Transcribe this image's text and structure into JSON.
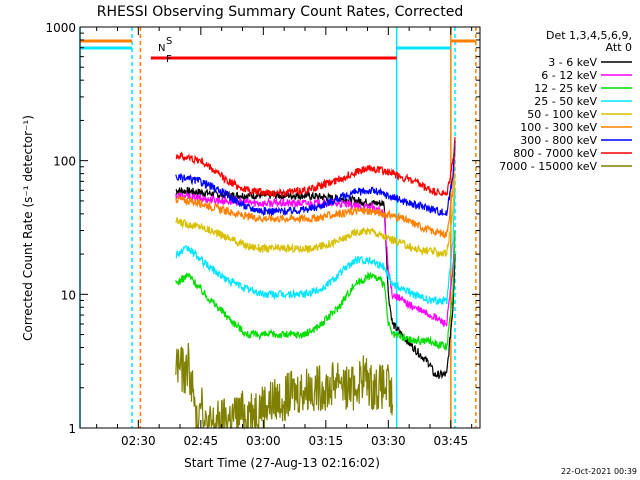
{
  "chart_data": {
    "type": "line",
    "title": "RHESSI Observing Summary Count Rates, Corrected",
    "xlabel": "Start Time (27-Aug-13 02:16:02)",
    "ylabel": "Corrected Count Rate (s⁻¹ detector⁻¹)",
    "yscale": "log",
    "ylim": [
      1,
      1000
    ],
    "xlim_minutes": [
      0,
      96
    ],
    "x_ticks": [
      {
        "label": "02:30",
        "minute": 14
      },
      {
        "label": "02:45",
        "minute": 29
      },
      {
        "label": "03:00",
        "minute": 44
      },
      {
        "label": "03:15",
        "minute": 59
      },
      {
        "label": "03:30",
        "minute": 74
      },
      {
        "label": "03:45",
        "minute": 89
      }
    ],
    "y_ticks": [
      {
        "label": "1",
        "value": 1
      },
      {
        "label": "10",
        "value": 10
      },
      {
        "label": "100",
        "value": 100
      },
      {
        "label": "1000",
        "value": 1000
      }
    ],
    "legend_header": [
      "Det 1,3,4,5,6,9,",
      "Att 0"
    ],
    "legend_position": "right",
    "flag_labels": {
      "S": "S",
      "N": "N",
      "F": "F"
    },
    "footer_date": "22-Oct-2021 00:39",
    "series": [
      {
        "name": "3 - 6 keV",
        "color": "#000000",
        "x": [
          23,
          29,
          35,
          44,
          54,
          62,
          67,
          70,
          73,
          74,
          75,
          80,
          84,
          85,
          88,
          89.5,
          90
        ],
        "y": [
          60,
          58,
          55,
          55,
          55,
          52,
          50,
          48,
          48,
          10,
          6,
          4,
          3,
          2.5,
          2.5,
          8,
          20
        ]
      },
      {
        "name": "6 - 12 keV",
        "color": "#ff00ff",
        "x": [
          23,
          29,
          35,
          44,
          54,
          62,
          67,
          70,
          73,
          74,
          75,
          80,
          84,
          88,
          89.5,
          90
        ],
        "y": [
          55,
          52,
          50,
          48,
          48,
          48,
          45,
          45,
          40,
          15,
          10,
          8,
          7,
          6,
          15,
          30
        ]
      },
      {
        "name": "12 - 25 keV",
        "color": "#00dd00",
        "x": [
          23,
          26,
          30,
          35,
          40,
          44,
          48,
          54,
          58,
          62,
          66,
          70,
          73,
          74,
          75,
          80,
          84,
          88,
          89.5,
          90
        ],
        "y": [
          12,
          14,
          10,
          7,
          5,
          5,
          5,
          5,
          6,
          8,
          12,
          14,
          12,
          6,
          5,
          4.5,
          4.5,
          4,
          10,
          30
        ]
      },
      {
        "name": "25 - 50 keV",
        "color": "#00e5ff",
        "x": [
          23,
          26,
          30,
          35,
          40,
          44,
          48,
          54,
          58,
          62,
          66,
          70,
          73,
          74,
          75,
          80,
          84,
          88,
          89.5,
          90
        ],
        "y": [
          20,
          22,
          17,
          13,
          11,
          10,
          10,
          10,
          11,
          14,
          18,
          18,
          16,
          14,
          12,
          10,
          9,
          9,
          25,
          60
        ]
      },
      {
        "name": "50 - 100 keV",
        "color": "#d8c000",
        "x": [
          23,
          29,
          35,
          40,
          44,
          50,
          56,
          62,
          66,
          70,
          73,
          76,
          80,
          84,
          88,
          89.5,
          90
        ],
        "y": [
          35,
          32,
          27,
          23,
          22,
          22,
          22,
          25,
          29,
          30,
          27,
          25,
          22,
          21,
          20,
          40,
          80
        ]
      },
      {
        "name": "100 - 300 keV",
        "color": "#ff8000",
        "x": [
          23,
          29,
          35,
          40,
          44,
          50,
          56,
          62,
          66,
          70,
          73,
          76,
          80,
          84,
          88,
          89.5,
          90
        ],
        "y": [
          52,
          48,
          42,
          38,
          37,
          37,
          37,
          40,
          42,
          42,
          40,
          38,
          34,
          30,
          28,
          60,
          120
        ]
      },
      {
        "name": "300 - 800 keV",
        "color": "#0000ff",
        "x": [
          23,
          29,
          35,
          40,
          44,
          50,
          56,
          62,
          66,
          70,
          73,
          76,
          80,
          84,
          88,
          89.5,
          90
        ],
        "y": [
          75,
          70,
          56,
          45,
          42,
          42,
          44,
          52,
          58,
          60,
          56,
          52,
          47,
          44,
          40,
          80,
          140
        ]
      },
      {
        "name": "800 - 7000 keV",
        "color": "#ff0000",
        "x": [
          23,
          29,
          35,
          40,
          44,
          50,
          56,
          62,
          66,
          70,
          73,
          76,
          80,
          84,
          88,
          89.5,
          90
        ],
        "y": [
          110,
          100,
          72,
          60,
          58,
          58,
          62,
          72,
          82,
          88,
          84,
          78,
          70,
          60,
          55,
          100,
          150
        ]
      },
      {
        "name": "7000 - 15000 keV",
        "color": "#808000",
        "x": [
          23,
          24,
          25,
          26,
          27,
          28,
          29,
          30,
          55,
          60,
          62,
          64,
          66,
          68,
          70,
          72,
          74,
          75
        ],
        "y": [
          3,
          3,
          2.5,
          3,
          2,
          1,
          2,
          1,
          2,
          2,
          2.5,
          2,
          2,
          2.5,
          2,
          2,
          2,
          1.5
        ]
      }
    ],
    "flags": [
      {
        "name": "SAA",
        "label": "S",
        "color": "#ff8000",
        "intervals": [
          [
            0,
            12.5
          ],
          [
            89,
            95
          ]
        ]
      },
      {
        "name": "Night",
        "label": "N",
        "color": "#00e5ff",
        "intervals": [
          [
            0,
            12.5
          ],
          [
            76,
            89
          ]
        ]
      },
      {
        "name": "Flare",
        "label": "F",
        "color": "#ff0000",
        "intervals": [
          [
            17,
            76
          ]
        ]
      }
    ],
    "vertical_lines": [
      {
        "minute": 0,
        "color": "#00e5ff",
        "style": "solid"
      },
      {
        "minute": 12.5,
        "color": "#00e5ff",
        "style": "dashed"
      },
      {
        "minute": 14.5,
        "color": "#ff8000",
        "style": "dashed"
      },
      {
        "minute": 76,
        "color": "#00e5ff",
        "style": "solid"
      },
      {
        "minute": 89,
        "color": "#ff8000",
        "style": "solid"
      },
      {
        "minute": 90,
        "color": "#00e5ff",
        "style": "dashed"
      },
      {
        "minute": 95,
        "color": "#ff8000",
        "style": "dashed"
      }
    ]
  }
}
